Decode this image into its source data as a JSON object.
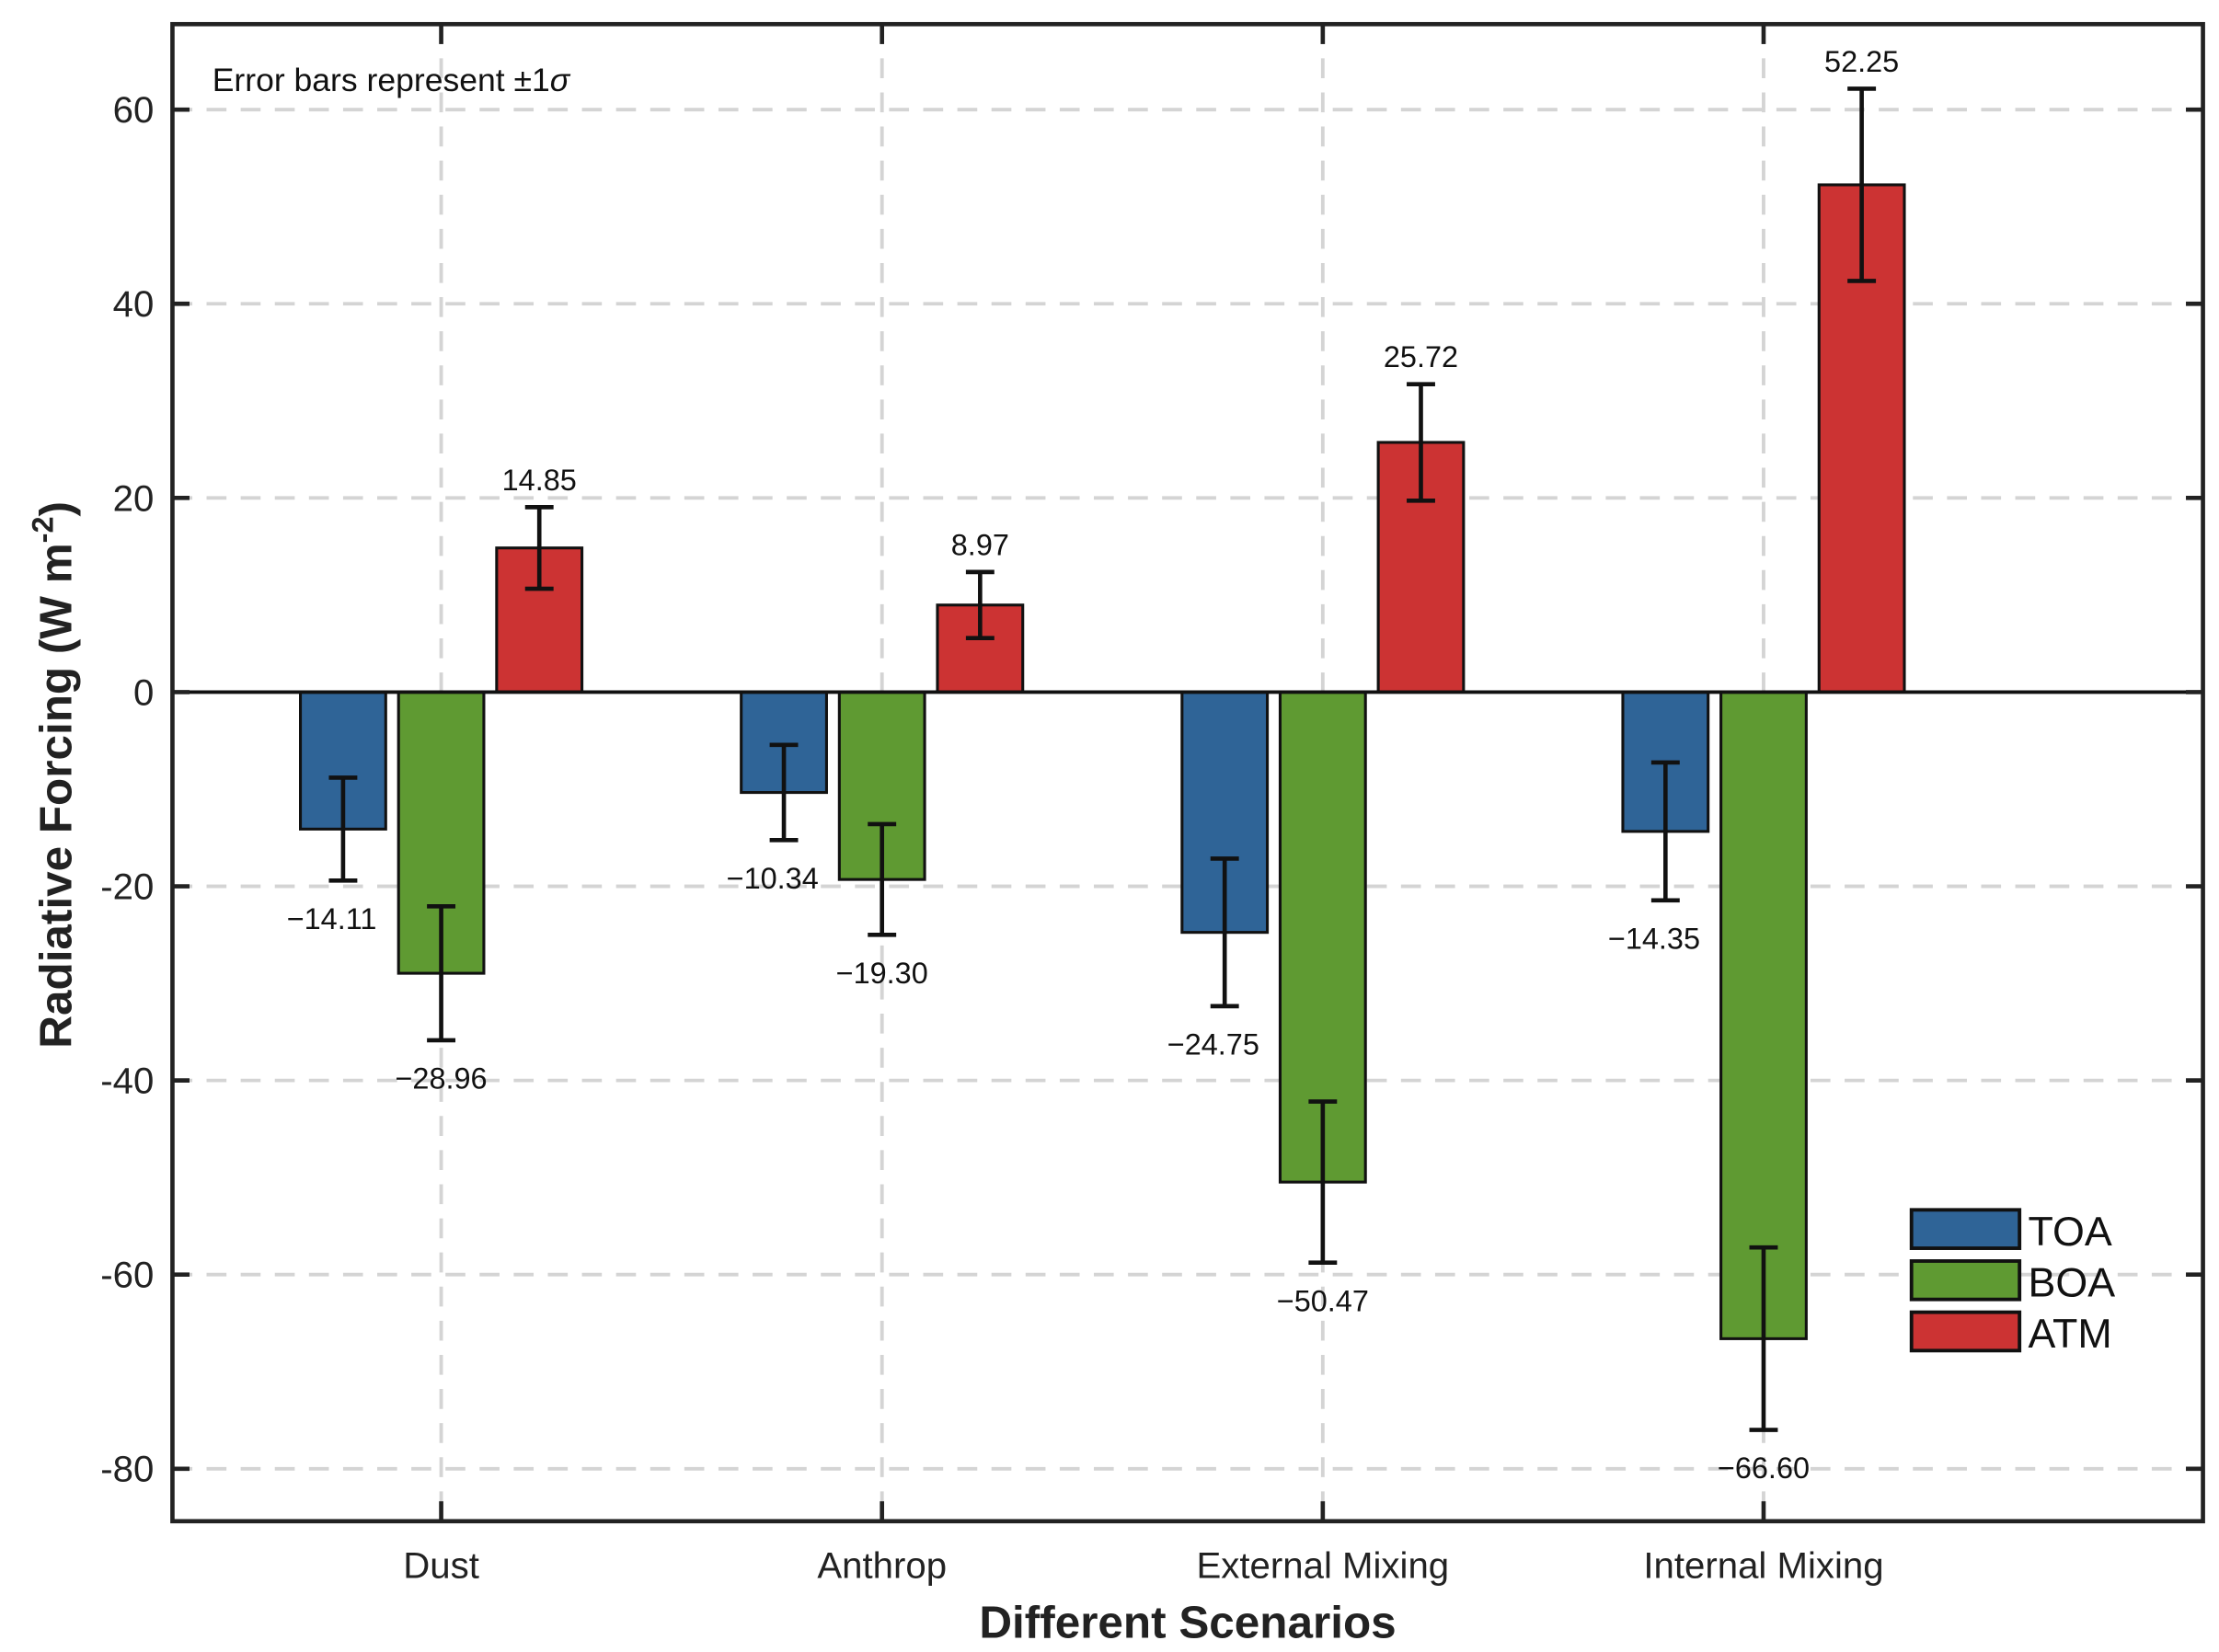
{
  "chart_data": {
    "type": "bar",
    "title": "",
    "xlabel": "Different Scenarios",
    "ylabel": "Radiative Forcing (W m",
    "ylabel_superscript": "-2",
    "ylabel_close": ")",
    "annotation": "Error bars represent ±1",
    "annotation_symbol": "σ",
    "categories": [
      "Dust",
      "Anthrop",
      "External Mixing",
      "Internal Mixing"
    ],
    "ylim": [
      -85.4,
      68.8
    ],
    "yticks": [
      -80,
      -60,
      -40,
      -20,
      0,
      20,
      40,
      60
    ],
    "ytick_labels": [
      "-80",
      "-60",
      "-40",
      "-20",
      "0",
      "20",
      "40",
      "60"
    ],
    "grid": true,
    "legend_position": "bottom-right",
    "series": [
      {
        "name": "TOA",
        "color": "#2f6497",
        "values": [
          -14.11,
          -10.34,
          -24.75,
          -14.35
        ],
        "errors": [
          5.3,
          4.9,
          7.6,
          7.1
        ],
        "labels": [
          "−14.11",
          "−10.34",
          "−24.75",
          "−14.35"
        ]
      },
      {
        "name": "BOA",
        "color": "#5f9a32",
        "values": [
          -28.96,
          -19.3,
          -50.47,
          -66.6
        ],
        "errors": [
          6.9,
          5.7,
          8.3,
          9.4
        ],
        "labels": [
          "−28.96",
          "−19.30",
          "−50.47",
          "−66.60"
        ]
      },
      {
        "name": "ATM",
        "color": "#cc3333",
        "values": [
          14.85,
          8.97,
          25.72,
          52.25
        ],
        "errors": [
          4.2,
          3.4,
          6.0,
          9.9
        ],
        "labels": [
          "14.85",
          "8.97",
          "25.72",
          "52.25"
        ]
      }
    ]
  }
}
